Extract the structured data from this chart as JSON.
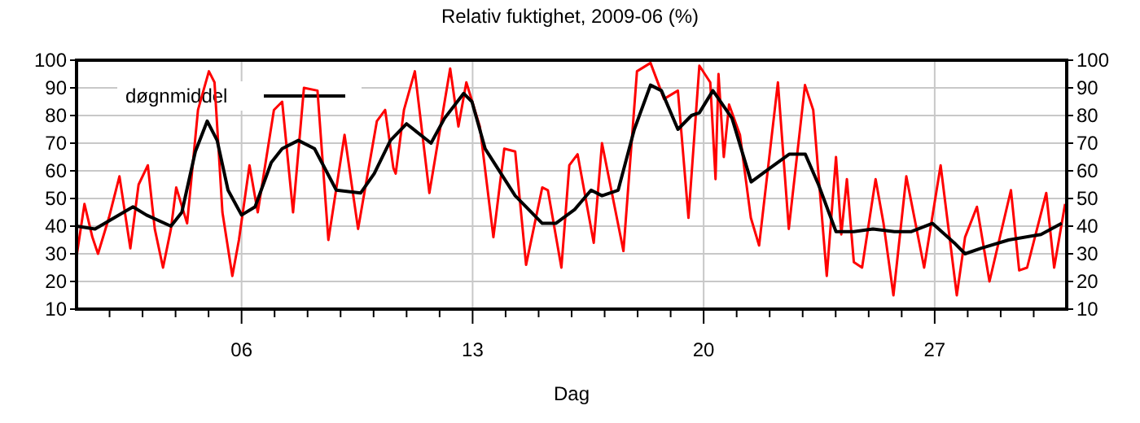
{
  "chart_data": {
    "type": "line",
    "title": "Relativ fuktighet, 2009-06 (%)",
    "xlabel": "Dag",
    "xlim": [
      1,
      31
    ],
    "xticks": [
      {
        "value": 2,
        "label": null
      },
      {
        "value": 3,
        "label": null
      },
      {
        "value": 4,
        "label": null
      },
      {
        "value": 5,
        "label": null
      },
      {
        "value": 6,
        "label": "06"
      },
      {
        "value": 7,
        "label": null
      },
      {
        "value": 8,
        "label": null
      },
      {
        "value": 9,
        "label": null
      },
      {
        "value": 10,
        "label": null
      },
      {
        "value": 11,
        "label": null
      },
      {
        "value": 12,
        "label": null
      },
      {
        "value": 13,
        "label": "13"
      },
      {
        "value": 14,
        "label": null
      },
      {
        "value": 15,
        "label": null
      },
      {
        "value": 16,
        "label": null
      },
      {
        "value": 17,
        "label": null
      },
      {
        "value": 18,
        "label": null
      },
      {
        "value": 19,
        "label": null
      },
      {
        "value": 20,
        "label": "20"
      },
      {
        "value": 21,
        "label": null
      },
      {
        "value": 22,
        "label": null
      },
      {
        "value": 23,
        "label": null
      },
      {
        "value": 24,
        "label": null
      },
      {
        "value": 25,
        "label": null
      },
      {
        "value": 26,
        "label": null
      },
      {
        "value": 27,
        "label": "27"
      },
      {
        "value": 28,
        "label": null
      },
      {
        "value": 29,
        "label": null
      },
      {
        "value": 30,
        "label": null
      }
    ],
    "ylim": [
      10,
      100
    ],
    "yticks": [
      10,
      20,
      30,
      40,
      50,
      60,
      70,
      80,
      90,
      100
    ],
    "y2lim": [
      10,
      100
    ],
    "y2ticks": [
      10,
      20,
      30,
      40,
      50,
      60,
      70,
      80,
      90,
      100
    ],
    "grid": true,
    "legend": "top left",
    "line_style": "solid",
    "series": [
      {
        "color": "#ff0000",
        "x": [
          1.0,
          1.24,
          1.48,
          1.65,
          1.98,
          2.3,
          2.63,
          2.88,
          3.16,
          3.37,
          3.62,
          3.86,
          4.02,
          4.35,
          4.68,
          5.01,
          5.18,
          5.42,
          5.72,
          5.92,
          6.24,
          6.49,
          6.98,
          7.23,
          7.56,
          7.89,
          8.3,
          8.63,
          9.12,
          9.53,
          10.1,
          10.35,
          10.6,
          10.67,
          10.92,
          11.25,
          11.69,
          12.32,
          12.57,
          12.81,
          13.22,
          13.63,
          13.96,
          14.29,
          14.62,
          15.11,
          15.28,
          15.69,
          15.93,
          16.18,
          16.67,
          16.92,
          17.57,
          17.98,
          18.39,
          18.8,
          19.22,
          19.54,
          19.87,
          20.2,
          20.36,
          20.45,
          20.61,
          20.77,
          21.1,
          21.43,
          21.68,
          22.25,
          22.58,
          23.07,
          23.32,
          23.73,
          24.01,
          24.17,
          24.34,
          24.55,
          24.8,
          25.21,
          25.45,
          25.75,
          26.14,
          26.68,
          27.18,
          27.67,
          27.92,
          28.28,
          28.66,
          29.31,
          29.56,
          29.8,
          30.38,
          30.62,
          30.95
        ],
        "values": [
          29,
          48,
          36,
          30,
          43,
          58,
          32,
          55,
          62,
          39,
          25,
          39,
          54,
          41,
          82,
          96,
          92,
          45,
          22,
          35,
          62,
          45,
          82,
          85,
          45,
          90,
          89,
          35,
          73,
          39,
          78,
          82,
          61,
          59,
          82,
          96,
          52,
          97,
          76,
          92,
          76,
          36,
          68,
          67,
          26,
          54,
          53,
          25,
          62,
          66,
          34,
          70,
          31,
          96,
          99,
          86,
          89,
          43,
          98,
          92,
          57,
          95,
          65,
          84,
          73,
          43,
          33,
          92,
          39,
          91,
          82,
          22,
          65,
          37,
          57,
          27,
          25,
          57,
          41,
          15,
          58,
          25,
          62,
          15,
          36,
          47,
          20,
          53,
          24,
          25,
          52,
          25,
          48
        ]
      },
      {
        "name": "døgnmiddel",
        "color": "#000000",
        "x": [
          1.0,
          1.56,
          2.14,
          2.71,
          3.12,
          3.86,
          4.19,
          4.6,
          4.96,
          5.26,
          5.59,
          6.0,
          6.41,
          6.9,
          7.23,
          7.72,
          8.21,
          8.87,
          9.61,
          10.02,
          10.51,
          11.0,
          11.74,
          12.15,
          12.73,
          12.98,
          13.38,
          14.29,
          15.11,
          15.52,
          16.09,
          16.59,
          16.92,
          17.41,
          17.9,
          18.39,
          18.72,
          19.22,
          19.63,
          19.87,
          20.28,
          20.86,
          21.44,
          22.01,
          22.59,
          23.08,
          23.48,
          24.01,
          24.55,
          25.13,
          25.78,
          26.28,
          26.93,
          27.59,
          27.92,
          28.41,
          29.24,
          30.22,
          30.85
        ],
        "values": [
          40,
          39,
          43,
          47,
          44,
          40,
          45,
          67,
          78,
          71,
          53,
          44,
          47,
          63,
          68,
          71,
          68,
          53,
          52,
          59,
          71,
          77,
          70,
          79,
          88,
          85,
          68,
          51,
          41,
          41,
          46,
          53,
          51,
          53,
          75,
          91,
          89,
          75,
          80,
          81,
          89,
          79,
          56,
          61,
          66,
          66,
          55,
          38,
          38,
          39,
          38,
          38,
          41,
          34,
          30,
          32,
          35,
          37,
          41
        ]
      }
    ]
  }
}
